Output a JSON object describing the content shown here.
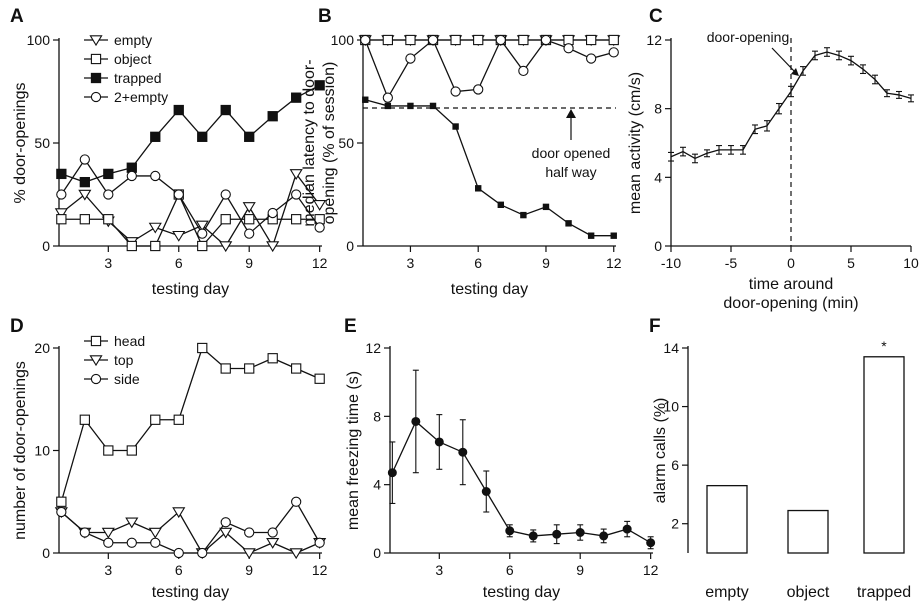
{
  "chart_data": [
    {
      "panel": "A",
      "type": "line",
      "xlabel": "testing day",
      "ylabel": "% door-openings",
      "xlim": [
        1,
        12
      ],
      "ylim": [
        0,
        100
      ],
      "xticks": [
        3,
        6,
        9,
        12
      ],
      "yticks": [
        0,
        50,
        100
      ],
      "legend": "top-left",
      "series": [
        {
          "name": "empty",
          "marker": "triangle-down",
          "x": [
            1,
            2,
            3,
            4,
            5,
            6,
            7,
            8,
            9,
            10,
            11,
            12
          ],
          "values": [
            16,
            25,
            12,
            2,
            9,
            5,
            10,
            0,
            19,
            0,
            35,
            20
          ]
        },
        {
          "name": "object",
          "marker": "square-open",
          "x": [
            1,
            2,
            3,
            4,
            5,
            6,
            7,
            8,
            9,
            10,
            11,
            12
          ],
          "values": [
            13,
            13,
            13,
            0,
            0,
            25,
            0,
            13,
            13,
            13,
            13,
            13
          ]
        },
        {
          "name": "trapped",
          "marker": "square-filled",
          "x": [
            1,
            2,
            3,
            4,
            5,
            6,
            7,
            8,
            9,
            10,
            11,
            12
          ],
          "values": [
            35,
            31,
            35,
            38,
            53,
            66,
            53,
            66,
            53,
            63,
            72,
            78
          ]
        },
        {
          "name": "2+empty",
          "marker": "circle-open",
          "x": [
            1,
            2,
            3,
            4,
            5,
            6,
            7,
            8,
            9,
            10,
            11,
            12
          ],
          "values": [
            25,
            42,
            25,
            34,
            34,
            25,
            6,
            25,
            6,
            16,
            25,
            9
          ]
        }
      ]
    },
    {
      "panel": "B",
      "type": "line",
      "xlabel": "testing day",
      "ylabel": "median latency to door-opening (% of session)",
      "ylabel_lines": [
        "median latency to door-",
        "opening (% of session)"
      ],
      "xlim": [
        1,
        12
      ],
      "ylim": [
        0,
        100
      ],
      "xticks": [
        3,
        6,
        9,
        12
      ],
      "yticks": [
        0,
        50,
        100
      ],
      "reference_line": {
        "y": 67,
        "style": "dashed"
      },
      "annotation": [
        "door opened",
        "half way"
      ],
      "series": [
        {
          "name": "empty",
          "marker": "triangle-down",
          "x": [
            1,
            2,
            3,
            4,
            5,
            6,
            7,
            8,
            9,
            10,
            11,
            12
          ],
          "values": [
            100,
            100,
            100,
            100,
            100,
            100,
            100,
            100,
            100,
            100,
            100,
            100
          ]
        },
        {
          "name": "object",
          "marker": "square-open",
          "x": [
            1,
            2,
            3,
            4,
            5,
            6,
            7,
            8,
            9,
            10,
            11,
            12
          ],
          "values": [
            100,
            100,
            100,
            100,
            100,
            100,
            100,
            100,
            100,
            100,
            100,
            100
          ]
        },
        {
          "name": "trapped",
          "marker": "square-filled",
          "x": [
            1,
            2,
            3,
            4,
            5,
            6,
            7,
            8,
            9,
            10,
            11,
            12
          ],
          "values": [
            71,
            68,
            68,
            68,
            58,
            28,
            20,
            15,
            19,
            11,
            5,
            5
          ]
        },
        {
          "name": "2+empty",
          "marker": "circle-open",
          "x": [
            1,
            2,
            3,
            4,
            5,
            6,
            7,
            8,
            9,
            10,
            11,
            12
          ],
          "values": [
            100,
            72,
            91,
            100,
            75,
            76,
            100,
            85,
            100,
            96,
            91,
            94
          ]
        }
      ]
    },
    {
      "panel": "C",
      "type": "line",
      "xlabel": "time around door-opening (min)",
      "xlabel_lines": [
        "time around",
        "door-opening (min)"
      ],
      "ylabel": "mean activity (cm/s)",
      "xlim": [
        -10,
        10
      ],
      "ylim": [
        0,
        12
      ],
      "xticks": [
        -10,
        -5,
        0,
        5,
        10
      ],
      "yticks": [
        0,
        4,
        8,
        12
      ],
      "reference_line": {
        "x": 0,
        "style": "dashed"
      },
      "annotation": "door-opening",
      "series": [
        {
          "x": [
            -10,
            -9,
            -8,
            -7,
            -6,
            -5,
            -4,
            -3,
            -2,
            -1,
            0,
            1,
            2,
            3,
            4,
            5,
            6,
            7,
            8,
            9,
            10
          ],
          "values": [
            5.2,
            5.5,
            5.1,
            5.4,
            5.6,
            5.6,
            5.6,
            6.8,
            7.0,
            8.0,
            9.0,
            10.2,
            11.1,
            11.3,
            11.1,
            10.8,
            10.3,
            9.7,
            8.9,
            8.8,
            8.6
          ],
          "errors": [
            0.25,
            0.25,
            0.25,
            0.2,
            0.25,
            0.25,
            0.25,
            0.25,
            0.3,
            0.3,
            0.3,
            0.25,
            0.25,
            0.25,
            0.25,
            0.25,
            0.25,
            0.25,
            0.2,
            0.2,
            0.2
          ]
        }
      ]
    },
    {
      "panel": "D",
      "type": "line",
      "xlabel": "testing day",
      "ylabel": "number of door-openings",
      "xlim": [
        1,
        12
      ],
      "ylim": [
        0,
        20
      ],
      "xticks": [
        3,
        6,
        9,
        12
      ],
      "yticks": [
        0,
        10,
        20
      ],
      "legend": "top-left",
      "series": [
        {
          "name": "head",
          "marker": "square-open",
          "x": [
            1,
            2,
            3,
            4,
            5,
            6,
            7,
            8,
            9,
            10,
            11,
            12
          ],
          "values": [
            5,
            13,
            10,
            10,
            13,
            13,
            20,
            18,
            18,
            19,
            18,
            17
          ]
        },
        {
          "name": "top",
          "marker": "triangle-down",
          "x": [
            1,
            2,
            3,
            4,
            5,
            6,
            7,
            8,
            9,
            10,
            11,
            12
          ],
          "values": [
            4,
            2,
            2,
            3,
            2,
            4,
            0,
            2,
            0,
            1,
            0,
            1
          ]
        },
        {
          "name": "side",
          "marker": "circle-open",
          "x": [
            1,
            2,
            3,
            4,
            5,
            6,
            7,
            8,
            9,
            10,
            11,
            12
          ],
          "values": [
            4,
            2,
            1,
            1,
            1,
            0,
            0,
            3,
            2,
            2,
            5,
            1
          ]
        }
      ]
    },
    {
      "panel": "E",
      "type": "line",
      "xlabel": "testing day",
      "ylabel": "mean freezing time (s)",
      "xlim": [
        1,
        12
      ],
      "ylim": [
        0,
        12
      ],
      "xticks": [
        3,
        6,
        9,
        12
      ],
      "yticks": [
        0,
        4,
        8,
        12
      ],
      "series": [
        {
          "x": [
            1,
            2,
            3,
            4,
            5,
            6,
            7,
            8,
            9,
            10,
            11,
            12
          ],
          "values": [
            4.7,
            7.7,
            6.5,
            5.9,
            3.6,
            1.3,
            1.0,
            1.1,
            1.2,
            1.0,
            1.4,
            0.6
          ],
          "errors": [
            1.8,
            3.0,
            1.6,
            1.9,
            1.2,
            0.35,
            0.35,
            0.55,
            0.45,
            0.4,
            0.45,
            0.35
          ]
        }
      ]
    },
    {
      "panel": "F",
      "type": "bar",
      "ylabel": "alarm calls (%)",
      "categories": [
        "empty",
        "object",
        "trapped"
      ],
      "values": [
        4.6,
        2.9,
        13.4
      ],
      "ylim": [
        0,
        14
      ],
      "yticks": [
        2,
        6,
        10,
        14
      ],
      "annotations": [
        "",
        "",
        "*"
      ]
    }
  ]
}
